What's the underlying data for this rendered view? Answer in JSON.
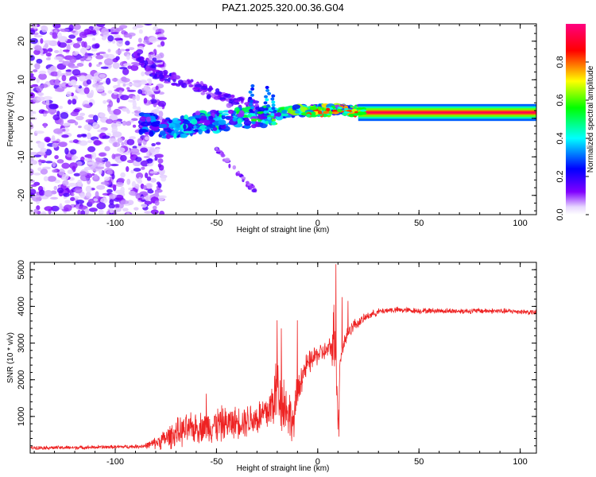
{
  "title": "PAZ1.2025.320.00.36.G04",
  "chart_data": [
    {
      "type": "heatmap",
      "xlabel": "Height of straight line (km)",
      "ylabel": "Frequency (Hz)",
      "xlim": [
        -142,
        108
      ],
      "ylim": [
        -25,
        24.5
      ],
      "xticks": [
        -100,
        -50,
        0,
        50,
        100
      ],
      "xtick_labels": [
        "-100",
        "-50",
        "0",
        "50",
        "100"
      ],
      "yticks": [
        -20,
        -10,
        0,
        10,
        20
      ],
      "ytick_labels": [
        "-20",
        "-10",
        "0",
        "10",
        "20"
      ],
      "colorbar": {
        "label": "Normalized spectral amplitude",
        "range": [
          0,
          1
        ],
        "ticks": [
          0,
          0.2,
          0.4,
          0.6,
          0.8
        ],
        "tick_labels": [
          "0.0",
          "0.2",
          "0.4",
          "0.6",
          "0.8"
        ],
        "colors": [
          "#ffffff",
          "#8000ff",
          "#0000ff",
          "#00ffff",
          "#00ff00",
          "#ffff00",
          "#ff0000",
          "#ff0080"
        ]
      },
      "features": {
        "steady_line": {
          "x": [
            20,
            108
          ],
          "freq_center": 1.5,
          "band": [
            -1,
            3
          ]
        },
        "main_trace": [
          [
            -88,
            -1
          ],
          [
            -80,
            -2
          ],
          [
            -70,
            -3
          ],
          [
            -60,
            -1
          ],
          [
            -50,
            -1
          ],
          [
            -40,
            0
          ],
          [
            -30,
            0.5
          ],
          [
            -20,
            1
          ],
          [
            -10,
            2
          ],
          [
            0,
            2
          ],
          [
            10,
            2.5
          ],
          [
            20,
            1.8
          ]
        ],
        "upper_branch": [
          [
            -90,
            16
          ],
          [
            -80,
            12
          ],
          [
            -70,
            10
          ],
          [
            -60,
            8
          ],
          [
            -50,
            6
          ],
          [
            -40,
            4
          ],
          [
            -30,
            3
          ]
        ],
        "lower_branch": [
          [
            -50,
            -8
          ],
          [
            -45,
            -11
          ],
          [
            -40,
            -14
          ],
          [
            -35,
            -17
          ],
          [
            -30,
            -19
          ]
        ],
        "noise_region": {
          "x": [
            -142,
            -82
          ],
          "freq": [
            -25,
            24.5
          ]
        }
      }
    },
    {
      "type": "line",
      "xlabel": "Height of straight line (km)",
      "ylabel": "SNR (10 * v/v)",
      "xlim": [
        -142,
        108
      ],
      "ylim": [
        0,
        5200
      ],
      "xticks": [
        -100,
        -50,
        0,
        50,
        100
      ],
      "xtick_labels": [
        "-100",
        "-50",
        "0",
        "50",
        "100"
      ],
      "yticks": [
        1000,
        2000,
        3000,
        4000,
        5000
      ],
      "ytick_labels": [
        "1000",
        "2000",
        "3000",
        "4000",
        "5000"
      ],
      "color": "#ee2222",
      "series": [
        {
          "name": "SNR",
          "x": [
            -142,
            -130,
            -120,
            -110,
            -100,
            -90,
            -85,
            -80,
            -75,
            -70,
            -65,
            -60,
            -55,
            -50,
            -45,
            -40,
            -35,
            -30,
            -25,
            -22,
            -20,
            -18,
            -15,
            -12,
            -10,
            -8,
            -5,
            -2,
            0,
            3,
            5,
            7,
            8,
            9,
            10,
            11,
            13,
            15,
            18,
            20,
            25,
            30,
            35,
            40,
            50,
            60,
            70,
            80,
            90,
            100,
            108
          ],
          "mean": [
            150,
            150,
            150,
            160,
            170,
            180,
            200,
            280,
            400,
            550,
            620,
            700,
            720,
            780,
            800,
            850,
            900,
            950,
            1100,
            1400,
            1800,
            1500,
            1200,
            800,
            1600,
            2100,
            2400,
            2600,
            2700,
            2750,
            2800,
            2900,
            3000,
            3300,
            600,
            2600,
            3000,
            3300,
            3500,
            3550,
            3750,
            3850,
            3900,
            3900,
            3880,
            3880,
            3870,
            3880,
            3870,
            3860,
            3830
          ],
          "amp": [
            60,
            60,
            60,
            60,
            60,
            60,
            90,
            200,
            350,
            450,
            500,
            500,
            500,
            600,
            550,
            500,
            550,
            600,
            700,
            900,
            1300,
            1100,
            900,
            600,
            700,
            500,
            400,
            350,
            350,
            300,
            350,
            400,
            1500,
            1500,
            250,
            400,
            300,
            250,
            200,
            160,
            130,
            110,
            100,
            100,
            90,
            90,
            90,
            90,
            90,
            90,
            90
          ],
          "peaks": [
            [
              9,
              5150
            ],
            [
              10.5,
              450
            ],
            [
              12,
              4250
            ],
            [
              15,
              4150
            ],
            [
              -20,
              3620
            ],
            [
              -18,
              3400
            ],
            [
              -10,
              3620
            ],
            [
              -55,
              1620
            ]
          ]
        }
      ]
    }
  ]
}
